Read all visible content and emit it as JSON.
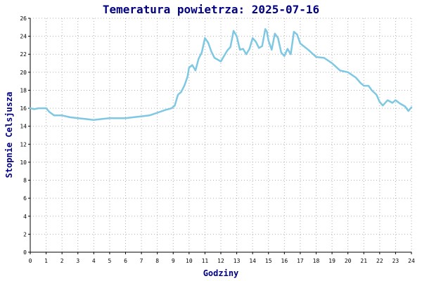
{
  "chart_data": {
    "type": "line",
    "title": "Temeratura powietrza: 2025-07-16",
    "xlabel": "Godziny",
    "ylabel": "Stopnie Celsjusza",
    "xlim": [
      0,
      24
    ],
    "ylim": [
      0,
      26
    ],
    "x_ticks": [
      0,
      1,
      2,
      3,
      4,
      5,
      6,
      7,
      8,
      9,
      10,
      11,
      12,
      13,
      14,
      15,
      16,
      17,
      18,
      19,
      20,
      21,
      22,
      23,
      24
    ],
    "y_ticks": [
      0,
      2,
      4,
      6,
      8,
      10,
      12,
      14,
      16,
      18,
      20,
      22,
      24,
      26
    ],
    "grid": true,
    "line_color": "#7ec8e3",
    "series": [
      {
        "x": [
          0,
          0.25,
          0.5,
          0.75,
          1.0,
          1.2,
          1.5,
          2.0,
          2.5,
          3.0,
          3.5,
          4.0,
          4.5,
          5.0,
          5.5,
          6.0,
          6.5,
          7.0,
          7.5,
          8.0,
          8.5,
          8.9,
          9.1,
          9.3,
          9.5,
          9.7,
          9.9,
          10.0,
          10.2,
          10.4,
          10.6,
          10.8,
          11.0,
          11.2,
          11.4,
          11.6,
          11.8,
          12.0,
          12.2,
          12.4,
          12.6,
          12.8,
          13.0,
          13.2,
          13.4,
          13.6,
          13.8,
          14.0,
          14.2,
          14.4,
          14.6,
          14.8,
          14.9,
          15.0,
          15.2,
          15.4,
          15.6,
          15.8,
          16.0,
          16.2,
          16.4,
          16.6,
          16.8,
          17.0,
          17.5,
          18.0,
          18.5,
          19.0,
          19.5,
          20.0,
          20.5,
          20.8,
          21.0,
          21.3,
          21.5,
          21.8,
          22.0,
          22.2,
          22.5,
          22.8,
          23.0,
          23.3,
          23.6,
          23.8,
          24.0
        ],
        "values": [
          16.0,
          15.9,
          16.0,
          16.0,
          16.0,
          15.6,
          15.2,
          15.2,
          15.0,
          14.9,
          14.8,
          14.7,
          14.8,
          14.9,
          14.9,
          14.9,
          15.0,
          15.1,
          15.2,
          15.5,
          15.8,
          16.0,
          16.3,
          17.5,
          17.8,
          18.5,
          19.5,
          20.5,
          20.8,
          20.2,
          21.5,
          22.2,
          23.8,
          23.3,
          22.3,
          21.6,
          21.4,
          21.2,
          21.8,
          22.4,
          22.8,
          24.6,
          24.0,
          22.5,
          22.6,
          22.0,
          22.6,
          23.8,
          23.4,
          22.7,
          22.9,
          24.8,
          24.5,
          23.5,
          22.5,
          24.3,
          23.8,
          22.2,
          21.8,
          22.6,
          22.0,
          24.5,
          24.2,
          23.2,
          22.5,
          21.7,
          21.6,
          21.0,
          20.2,
          20.0,
          19.4,
          18.8,
          18.5,
          18.5,
          18.0,
          17.5,
          16.7,
          16.3,
          16.9,
          16.6,
          16.9,
          16.5,
          16.2,
          15.7,
          16.1
        ]
      }
    ]
  }
}
